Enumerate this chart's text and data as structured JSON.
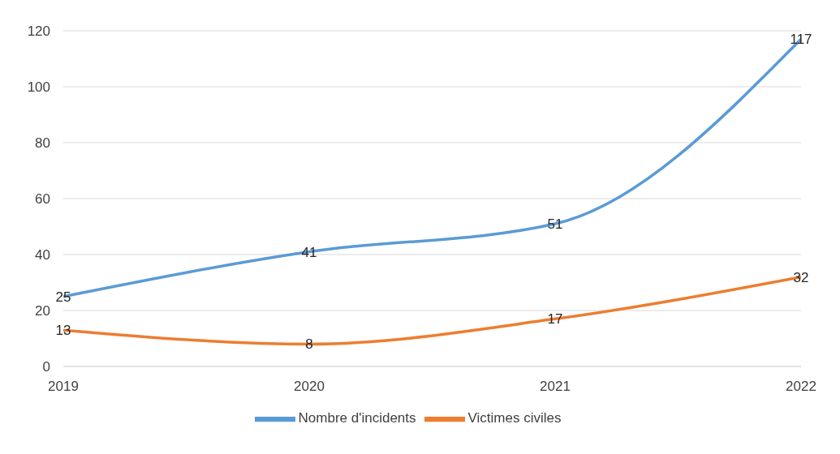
{
  "chart_data": {
    "type": "line",
    "x": [
      2019,
      2020,
      2021,
      2022
    ],
    "xlim": [
      2019,
      2022
    ],
    "xticks": [
      2019,
      2020,
      2021,
      2022
    ],
    "ylim": [
      0,
      120
    ],
    "yticks": [
      0,
      20,
      40,
      60,
      80,
      100,
      120
    ],
    "series": [
      {
        "name": "Nombre d'incidents",
        "color": "#5b9bd5",
        "values": [
          25,
          41,
          51,
          117
        ]
      },
      {
        "name": "Victimes civiles",
        "color": "#ed7d31",
        "values": [
          13,
          8,
          17,
          32
        ]
      }
    ],
    "data_labels": true,
    "grid": "y",
    "legend": "bottom",
    "marker": "none"
  }
}
